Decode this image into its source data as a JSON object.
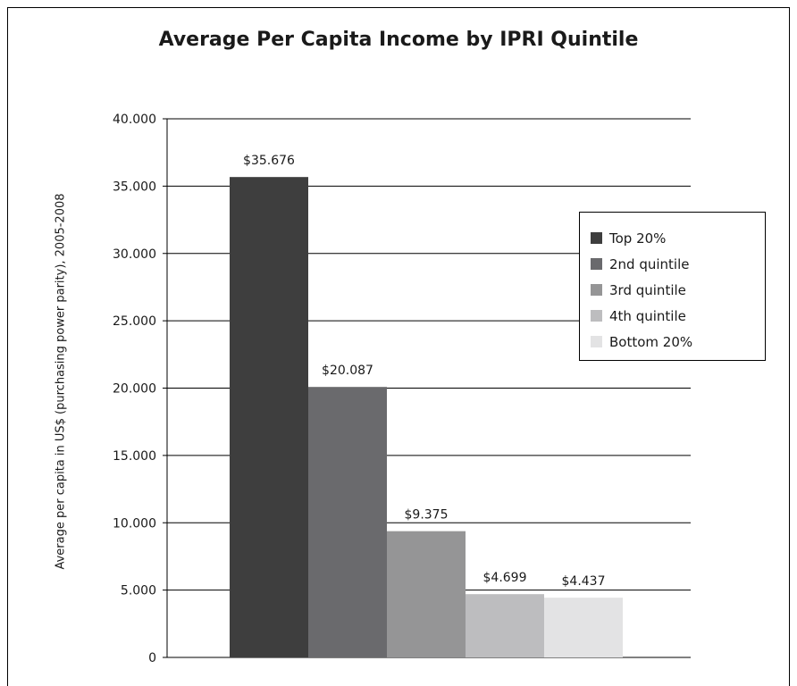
{
  "chart_data": {
    "type": "bar",
    "title": "Average Per Capita Income by IPRI Quintile",
    "xlabel": "",
    "ylabel": "Average per capita in US$ (purchasing power parity), 2005-2008",
    "ylim": [
      0,
      40000
    ],
    "yticks": [
      0,
      5000,
      10000,
      15000,
      20000,
      25000,
      30000,
      35000,
      40000
    ],
    "ytick_labels": [
      "0",
      "5.000",
      "10.000",
      "15.000",
      "20.000",
      "25.000",
      "30.000",
      "35.000",
      "40.000"
    ],
    "grid": true,
    "legend_position": "right",
    "series": [
      {
        "name": "Top 20%",
        "value": 35676,
        "label": "$35.676",
        "color": "#3e3e3e"
      },
      {
        "name": "2nd quintile",
        "value": 20087,
        "label": "$20.087",
        "color": "#6a6a6d"
      },
      {
        "name": "3rd quintile",
        "value": 9375,
        "label": "$9.375",
        "color": "#959596"
      },
      {
        "name": "4th quintile",
        "value": 4699,
        "label": "$4.699",
        "color": "#bdbdbf"
      },
      {
        "name": "Bottom 20%",
        "value": 4437,
        "label": "$4.437",
        "color": "#e3e3e4"
      }
    ]
  }
}
